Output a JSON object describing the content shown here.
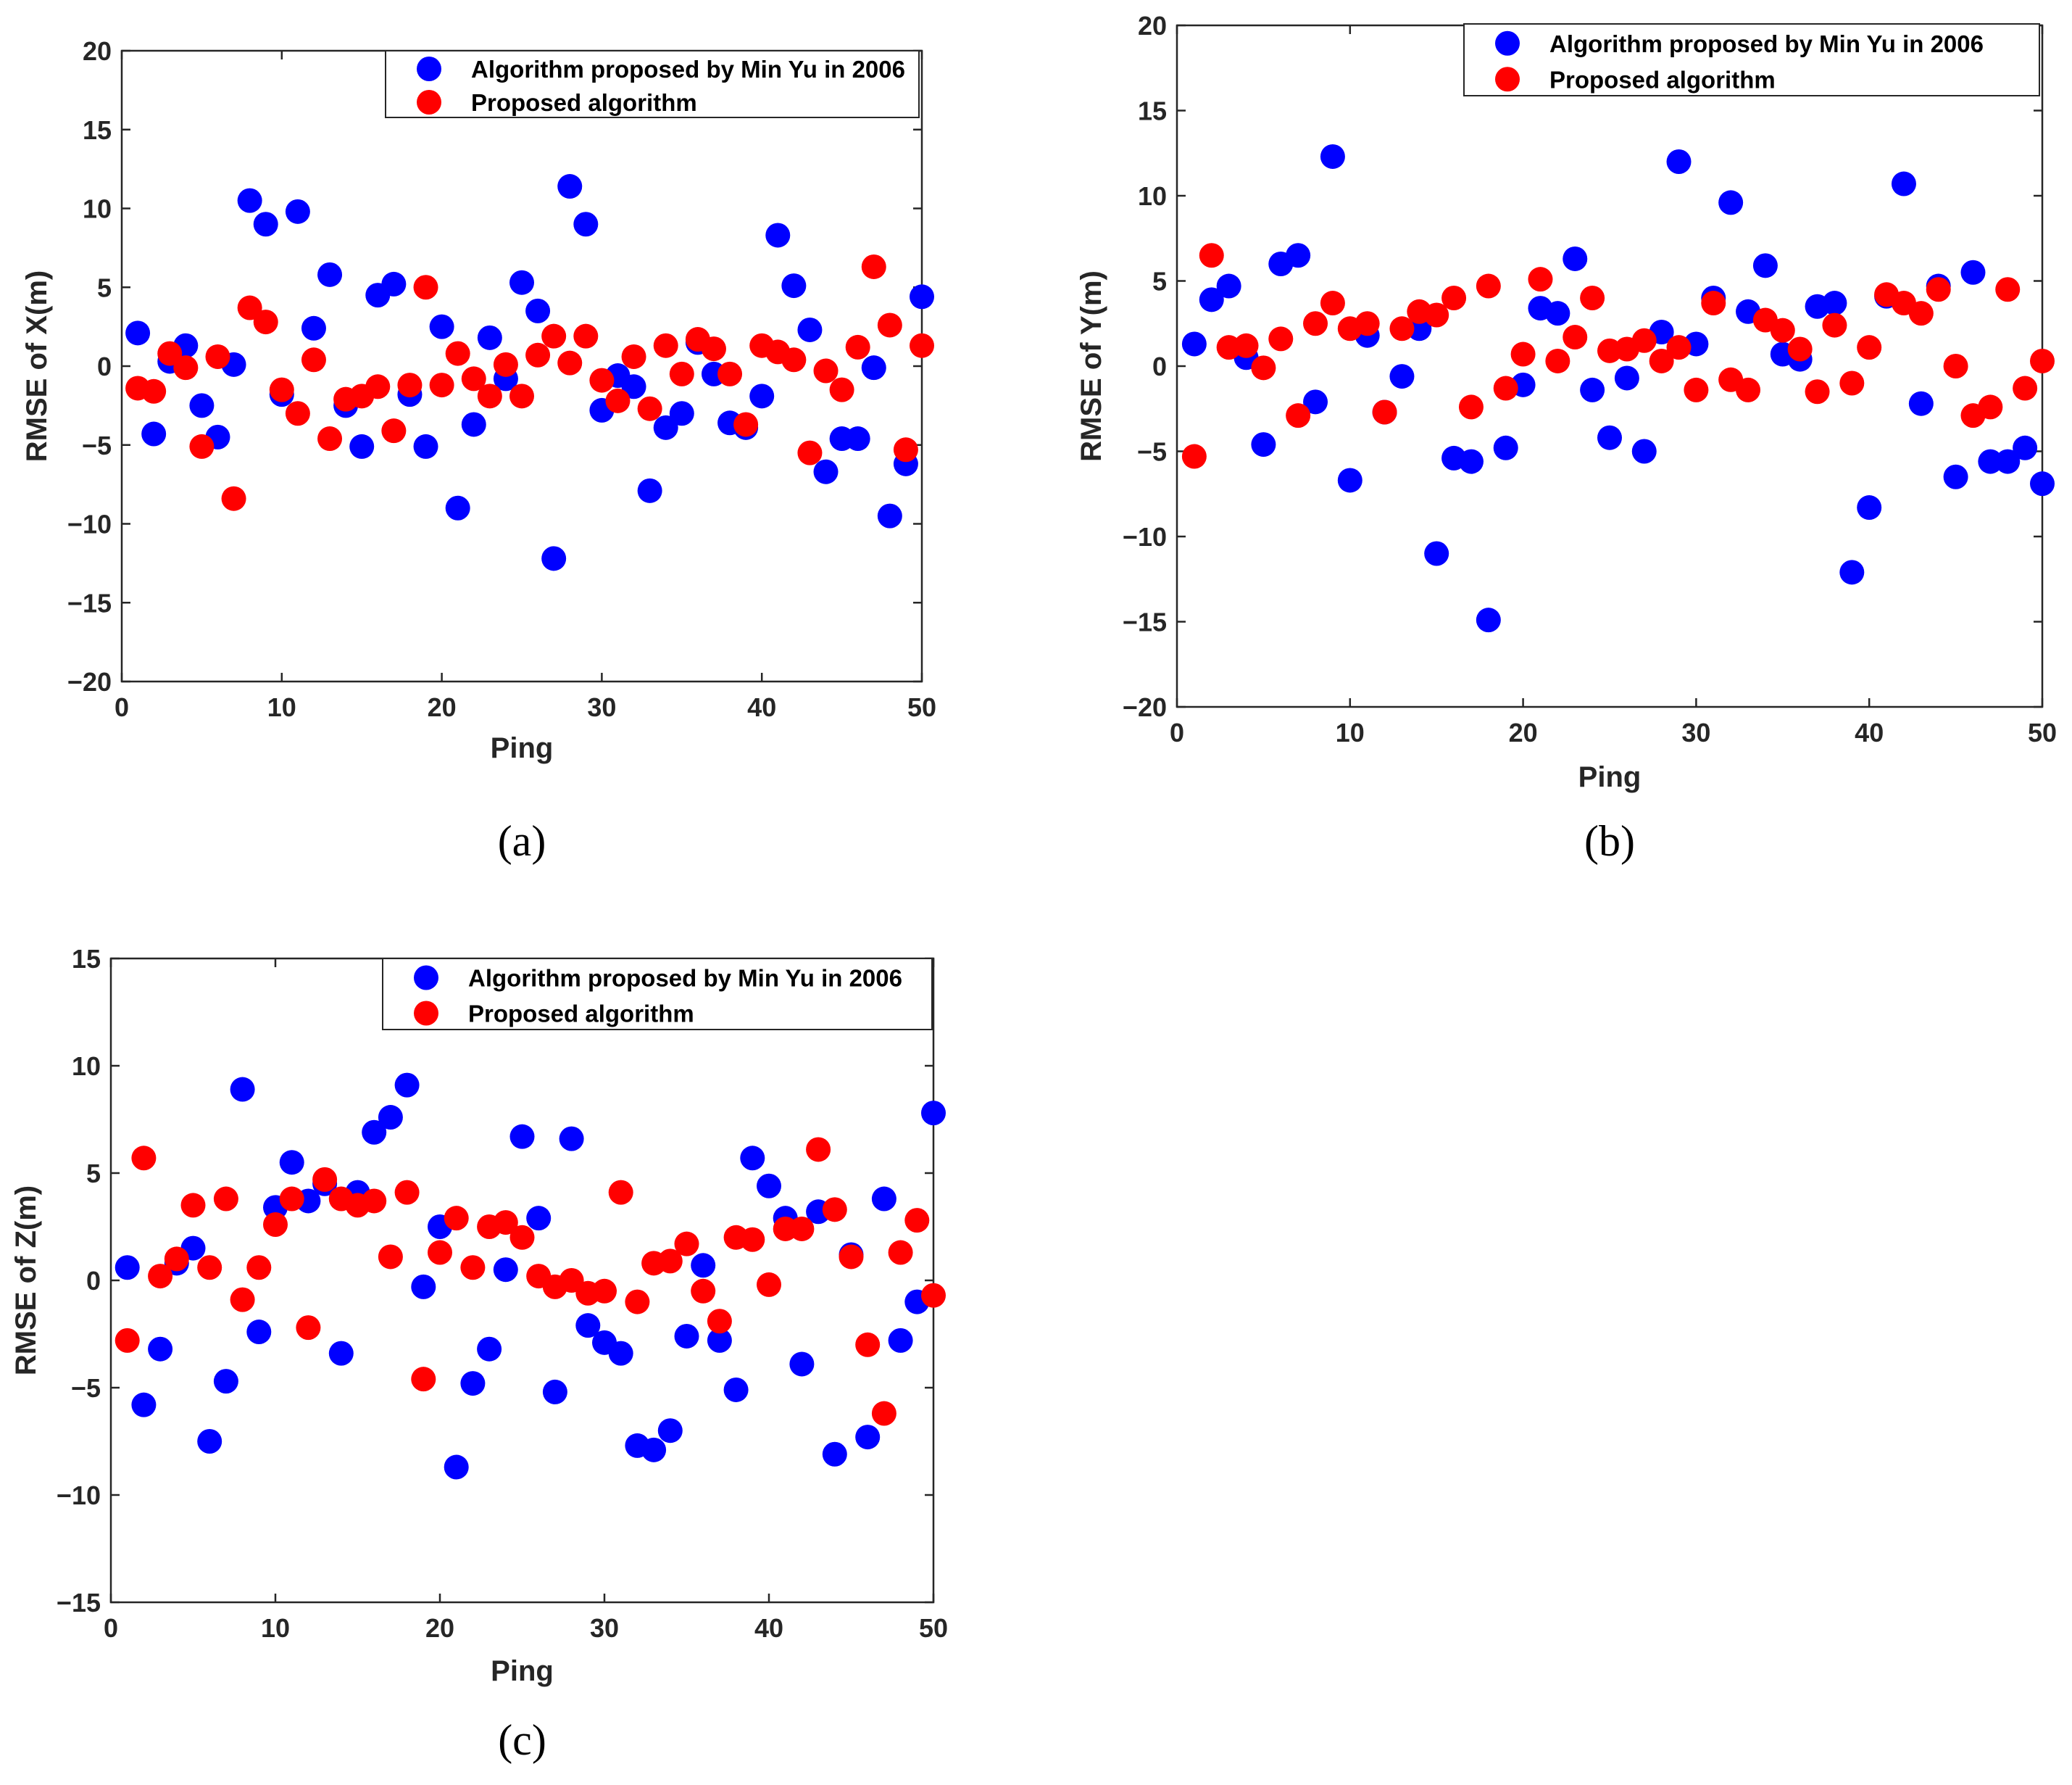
{
  "colors": {
    "series_a": "#0000ff",
    "series_b": "#ff0000"
  },
  "chart_data": [
    {
      "type": "scatter",
      "panel_label": "(a)",
      "xlabel": "Ping",
      "ylabel": "RMSE of X(m)",
      "xlim": [
        0,
        50
      ],
      "ylim": [
        -20,
        20
      ],
      "xticks": [
        0,
        10,
        20,
        30,
        40,
        50
      ],
      "yticks": [
        -20,
        -15,
        -10,
        -5,
        0,
        5,
        10,
        15,
        20
      ],
      "grid": true,
      "legend_position": "top-right",
      "series": [
        {
          "name": "Algorithm proposed by Min Yu in 2006",
          "color": "#0000ff",
          "x": [
            1,
            2,
            3,
            4,
            5,
            6,
            7,
            8,
            9,
            10,
            11,
            12,
            13,
            14,
            15,
            16,
            17,
            18,
            19,
            20,
            21,
            22,
            23,
            24,
            25,
            26,
            27,
            28,
            29,
            30,
            31,
            32,
            33,
            34,
            35,
            36,
            37,
            38,
            39,
            40,
            41,
            42,
            43,
            44,
            45,
            46,
            47,
            48,
            49,
            50
          ],
          "y": [
            2.1,
            -4.3,
            0.3,
            1.3,
            -2.5,
            -4.5,
            0.1,
            10.5,
            9.0,
            -1.8,
            9.8,
            2.4,
            5.8,
            -2.5,
            -5.1,
            4.5,
            5.2,
            -1.8,
            -5.1,
            2.5,
            -9.0,
            -3.7,
            1.8,
            -0.8,
            5.3,
            3.5,
            -12.2,
            11.4,
            9.0,
            -2.8,
            -0.6,
            -1.3,
            -7.9,
            -3.9,
            -3.0,
            1.5,
            -0.5,
            -3.6,
            -3.9,
            -1.9,
            8.3,
            5.1,
            2.3,
            -6.7,
            -4.6,
            -4.6,
            -0.1,
            -9.5,
            -6.2,
            4.4
          ]
        },
        {
          "name": "Proposed algorithm",
          "color": "#ff0000",
          "x": [
            1,
            2,
            3,
            4,
            5,
            6,
            7,
            8,
            9,
            10,
            11,
            12,
            13,
            14,
            15,
            16,
            17,
            18,
            19,
            20,
            21,
            22,
            23,
            24,
            25,
            26,
            27,
            28,
            29,
            30,
            31,
            32,
            33,
            34,
            35,
            36,
            37,
            38,
            39,
            40,
            41,
            42,
            43,
            44,
            45,
            46,
            47,
            48,
            49,
            50
          ],
          "y": [
            -1.4,
            -1.6,
            0.8,
            -0.1,
            -5.1,
            0.6,
            -8.4,
            3.7,
            2.8,
            -1.5,
            -3.0,
            0.4,
            -4.6,
            -2.1,
            -1.9,
            -1.3,
            -4.1,
            -1.2,
            5.0,
            -1.2,
            0.8,
            -0.8,
            -1.9,
            0.1,
            -1.9,
            0.7,
            1.9,
            0.2,
            1.9,
            -0.9,
            -2.2,
            0.6,
            -2.7,
            1.3,
            -0.5,
            1.7,
            1.1,
            -0.5,
            -3.7,
            1.3,
            0.9,
            0.4,
            -5.5,
            -0.3,
            -1.5,
            1.2,
            6.3,
            2.6,
            -5.3,
            1.3
          ]
        }
      ]
    },
    {
      "type": "scatter",
      "panel_label": "(b)",
      "xlabel": "Ping",
      "ylabel": "RMSE of Y(m)",
      "xlim": [
        0,
        50
      ],
      "ylim": [
        -20,
        20
      ],
      "xticks": [
        0,
        10,
        20,
        30,
        40,
        50
      ],
      "yticks": [
        -20,
        -15,
        -10,
        -5,
        0,
        5,
        10,
        15,
        20
      ],
      "grid": true,
      "legend_position": "top-right",
      "series": [
        {
          "name": "Algorithm proposed by Min Yu in 2006",
          "color": "#0000ff",
          "x": [
            1,
            2,
            3,
            4,
            5,
            6,
            7,
            8,
            9,
            10,
            11,
            12,
            13,
            14,
            15,
            16,
            17,
            18,
            19,
            20,
            21,
            22,
            23,
            24,
            25,
            26,
            27,
            28,
            29,
            30,
            31,
            32,
            33,
            34,
            35,
            36,
            37,
            38,
            39,
            40,
            41,
            42,
            43,
            44,
            45,
            46,
            47,
            48,
            49,
            50
          ],
          "y": [
            1.3,
            3.9,
            4.7,
            0.5,
            -4.6,
            6.0,
            6.5,
            -2.1,
            12.3,
            -6.7,
            1.8,
            -2.7,
            -0.6,
            2.2,
            -11.0,
            -5.4,
            -5.6,
            -14.9,
            -4.8,
            -1.1,
            3.4,
            3.1,
            6.3,
            -1.4,
            -4.2,
            -0.7,
            -5.0,
            2.0,
            12.0,
            1.3,
            4.0,
            9.6,
            3.2,
            5.9,
            0.7,
            0.4,
            3.5,
            3.7,
            -12.1,
            -8.3,
            4.1,
            10.7,
            -2.2,
            4.7,
            -6.5,
            5.5,
            -5.6,
            -5.6,
            -4.8,
            -6.9
          ]
        },
        {
          "name": "Proposed algorithm",
          "color": "#ff0000",
          "x": [
            1,
            2,
            3,
            4,
            5,
            6,
            7,
            8,
            9,
            10,
            11,
            12,
            13,
            14,
            15,
            16,
            17,
            18,
            19,
            20,
            21,
            22,
            23,
            24,
            25,
            26,
            27,
            28,
            29,
            30,
            31,
            32,
            33,
            34,
            35,
            36,
            37,
            38,
            39,
            40,
            41,
            42,
            43,
            44,
            45,
            46,
            47,
            48,
            49,
            50
          ],
          "y": [
            -5.3,
            6.5,
            1.1,
            1.2,
            -0.1,
            1.6,
            -2.9,
            2.5,
            3.7,
            2.2,
            2.5,
            -2.7,
            2.2,
            3.2,
            3.0,
            4.0,
            -2.4,
            4.7,
            -1.3,
            0.7,
            5.1,
            0.3,
            1.7,
            4.0,
            0.9,
            1.0,
            1.5,
            0.3,
            1.1,
            -1.4,
            3.7,
            -0.8,
            -1.4,
            2.7,
            2.1,
            1.0,
            -1.5,
            2.4,
            -1.0,
            1.1,
            4.2,
            3.7,
            3.1,
            4.5,
            0.0,
            -2.9,
            -2.4,
            4.5,
            -1.3,
            0.3
          ]
        }
      ]
    },
    {
      "type": "scatter",
      "panel_label": "(c)",
      "xlabel": "Ping",
      "ylabel": "RMSE of Z(m)",
      "xlim": [
        0,
        50
      ],
      "ylim": [
        -15,
        15
      ],
      "xticks": [
        0,
        10,
        20,
        30,
        40,
        50
      ],
      "yticks": [
        -15,
        -10,
        -5,
        0,
        5,
        10,
        15
      ],
      "grid": true,
      "legend_position": "top-right",
      "series": [
        {
          "name": "Algorithm proposed by Min Yu in 2006",
          "color": "#0000ff",
          "x": [
            1,
            2,
            3,
            4,
            5,
            6,
            7,
            8,
            9,
            10,
            11,
            12,
            13,
            14,
            15,
            16,
            17,
            18,
            19,
            20,
            21,
            22,
            23,
            24,
            25,
            26,
            27,
            28,
            29,
            30,
            31,
            32,
            33,
            34,
            35,
            36,
            37,
            38,
            39,
            40,
            41,
            42,
            43,
            44,
            45,
            46,
            47,
            48,
            49,
            50
          ],
          "y": [
            0.6,
            -5.8,
            -3.2,
            0.8,
            1.5,
            -7.5,
            -4.7,
            8.9,
            -2.4,
            3.4,
            5.5,
            3.7,
            4.5,
            -3.4,
            4.1,
            6.9,
            7.6,
            9.1,
            -0.3,
            2.5,
            -8.7,
            -4.8,
            -3.2,
            0.5,
            6.7,
            2.9,
            -5.2,
            6.6,
            -2.1,
            -2.9,
            -3.4,
            -7.7,
            -7.9,
            -7.0,
            -2.6,
            0.7,
            -2.8,
            -5.1,
            5.7,
            4.4,
            2.9,
            -3.9,
            3.2,
            -8.1,
            1.2,
            -7.3,
            3.8,
            -2.8,
            -1.0,
            7.8
          ]
        },
        {
          "name": "Proposed algorithm",
          "color": "#ff0000",
          "x": [
            1,
            2,
            3,
            4,
            5,
            6,
            7,
            8,
            9,
            10,
            11,
            12,
            13,
            14,
            15,
            16,
            17,
            18,
            19,
            20,
            21,
            22,
            23,
            24,
            25,
            26,
            27,
            28,
            29,
            30,
            31,
            32,
            33,
            34,
            35,
            36,
            37,
            38,
            39,
            40,
            41,
            42,
            43,
            44,
            45,
            46,
            47,
            48,
            49,
            50
          ],
          "y": [
            -2.8,
            5.7,
            0.2,
            1.0,
            3.5,
            0.6,
            3.8,
            -0.9,
            0.6,
            2.6,
            3.8,
            -2.2,
            4.7,
            3.8,
            3.5,
            3.7,
            1.1,
            4.1,
            -4.6,
            1.3,
            2.9,
            0.6,
            2.5,
            2.7,
            2.0,
            0.2,
            -0.3,
            0.0,
            -0.6,
            -0.5,
            4.1,
            -1.0,
            0.8,
            0.9,
            1.7,
            -0.5,
            -1.9,
            2.0,
            1.9,
            -0.2,
            2.4,
            2.4,
            6.1,
            3.3,
            1.1,
            -3.0,
            -6.2,
            1.3,
            2.8,
            -0.7
          ]
        }
      ]
    }
  ]
}
